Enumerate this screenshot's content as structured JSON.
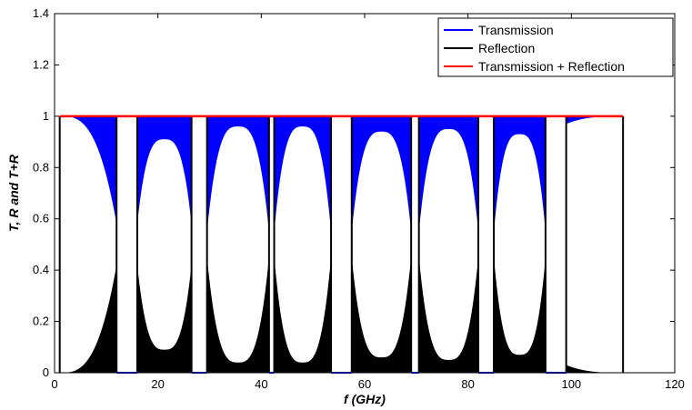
{
  "chart_data": {
    "type": "line",
    "title": "",
    "xlabel": "f (GHz)",
    "ylabel": "T, R and T+R",
    "xlim": [
      0,
      120
    ],
    "ylim": [
      0,
      1.4
    ],
    "xticks": [
      0,
      20,
      40,
      60,
      80,
      100,
      120
    ],
    "xtick_labels": [
      "0",
      "20",
      "40",
      "60",
      "80",
      "100",
      "120"
    ],
    "yticks": [
      0,
      0.2,
      0.4,
      0.6,
      0.8,
      1,
      1.2,
      1.4
    ],
    "ytick_labels": [
      "0",
      "0.2",
      "0.4",
      "0.6",
      "0.8",
      "1",
      "1.2",
      "1.4"
    ],
    "grid": false,
    "legend_position": "top-right",
    "band_edges_ghz": [
      [
        12,
        16
      ],
      [
        26.5,
        29.5
      ],
      [
        41.5,
        42.5
      ],
      [
        53.5,
        57.5
      ],
      [
        69,
        70.5
      ],
      [
        82,
        85
      ],
      [
        95,
        99
      ]
    ],
    "passband_transmission_min": [
      {
        "start": 1,
        "end": 12,
        "value": 0.58
      },
      {
        "start": 16,
        "end": 26.5,
        "value": 0.58
      },
      {
        "start": 29.5,
        "end": 41.5,
        "value": 0.55
      },
      {
        "start": 42.5,
        "end": 53.5,
        "value": 0.55
      },
      {
        "start": 57.5,
        "end": 69,
        "value": 0.55
      },
      {
        "start": 70.5,
        "end": 82,
        "value": 0.55
      },
      {
        "start": 85,
        "end": 95,
        "value": 0.55
      },
      {
        "start": 99,
        "end": 110,
        "value": 0.97
      }
    ],
    "passband_peak_transmission": [
      1.0,
      0.91,
      0.96,
      0.96,
      0.94,
      0.95,
      0.93,
      1.0
    ],
    "series": [
      {
        "name": "Transmission",
        "color": "#0000ff",
        "description_values": "oscillating, 1 in stop gaps excluded"
      },
      {
        "name": "Reflection",
        "color": "#000000"
      },
      {
        "name": "Transmission + Reflection",
        "color": "#ff0000",
        "constant": 1
      }
    ],
    "x_range": [
      1,
      110
    ]
  },
  "legend": {
    "items": [
      {
        "label": "Transmission",
        "color": "#0000ff"
      },
      {
        "label": "Reflection",
        "color": "#000000"
      },
      {
        "label": "Transmission + Reflection",
        "color": "#ff0000"
      }
    ]
  }
}
